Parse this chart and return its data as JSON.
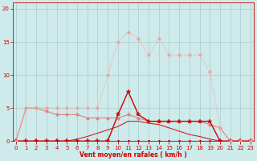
{
  "bg_color": "#ceeaea",
  "grid_color": "#aacccc",
  "xlabel": "Vent moyen/en rafales ( km/h )",
  "x_ticks": [
    0,
    1,
    2,
    3,
    4,
    5,
    6,
    7,
    8,
    9,
    10,
    11,
    12,
    13,
    14,
    15,
    16,
    17,
    18,
    19,
    20,
    21,
    22,
    23
  ],
  "y_ticks": [
    0,
    5,
    10,
    15,
    20
  ],
  "ylim": [
    0,
    21
  ],
  "xlim": [
    -0.3,
    23.3
  ],
  "line_light_dotted": {
    "x": [
      0,
      1,
      2,
      3,
      4,
      5,
      6,
      7,
      8,
      9,
      10,
      11,
      12,
      13,
      14,
      15,
      16,
      17,
      18,
      19,
      20,
      21,
      22,
      23
    ],
    "y": [
      0,
      5,
      5,
      5,
      5,
      5,
      5,
      5,
      5,
      10,
      15,
      16.5,
      15.5,
      13,
      15.5,
      13,
      13,
      13,
      13,
      10.5,
      2,
      0,
      0,
      0
    ],
    "color": "#f0a0a0",
    "lw": 0.8,
    "marker": "o",
    "ms": 2.5,
    "ls": ":"
  },
  "line_dark_peaked": {
    "x": [
      0,
      1,
      2,
      3,
      4,
      5,
      6,
      7,
      8,
      9,
      10,
      11,
      12,
      13,
      14,
      15,
      16,
      17,
      18,
      19,
      20,
      21,
      22,
      23
    ],
    "y": [
      0,
      0,
      0,
      0,
      0,
      0,
      0,
      0,
      0,
      0,
      4,
      7.5,
      4,
      3,
      3,
      3,
      3,
      3,
      3,
      3,
      0,
      0,
      0,
      0
    ],
    "color": "#cc0000",
    "lw": 1.0,
    "marker": "*",
    "ms": 4,
    "ls": "-"
  },
  "line_pink_decreasing": {
    "x": [
      0,
      1,
      2,
      3,
      4,
      5,
      6,
      7,
      8,
      9,
      10,
      11,
      12,
      13,
      14,
      15,
      16,
      17,
      18,
      19,
      20,
      21,
      22,
      23
    ],
    "y": [
      0,
      5,
      5,
      4.5,
      4,
      4,
      4,
      3.5,
      3.5,
      3.5,
      3.5,
      4,
      3.5,
      3,
      3,
      3,
      3,
      3,
      3,
      2.5,
      2,
      0,
      0,
      0
    ],
    "color": "#e08080",
    "lw": 0.8,
    "marker": "o",
    "ms": 2.5,
    "ls": "-"
  },
  "line_rising_diagonal": {
    "x": [
      0,
      1,
      2,
      3,
      4,
      5,
      6,
      7,
      8,
      9,
      10,
      11,
      12,
      13,
      14,
      15,
      16,
      17,
      18,
      19,
      20,
      21,
      22,
      23
    ],
    "y": [
      0,
      0,
      0,
      0,
      0,
      0,
      0.3,
      0.7,
      1.2,
      1.7,
      2.2,
      3,
      3,
      2.7,
      2.5,
      2,
      1.5,
      1,
      0.7,
      0.3,
      0,
      0,
      0,
      0
    ],
    "color": "#cc2222",
    "lw": 0.8,
    "marker": "None",
    "ms": 0,
    "ls": "-"
  },
  "line_zero_flat": {
    "x": [
      0,
      1,
      2,
      3,
      4,
      5,
      6,
      7,
      8,
      9,
      10,
      11,
      12,
      13,
      14,
      15,
      16,
      17,
      18,
      19,
      20,
      21,
      22,
      23
    ],
    "y": [
      0,
      0,
      0,
      0,
      0,
      0,
      0,
      0,
      0,
      0,
      0,
      0,
      0,
      0,
      0,
      0,
      0,
      0,
      0,
      0,
      0,
      0,
      0,
      0
    ],
    "color": "#cc0000",
    "lw": 0.8,
    "marker": "o",
    "ms": 2,
    "ls": "-"
  }
}
